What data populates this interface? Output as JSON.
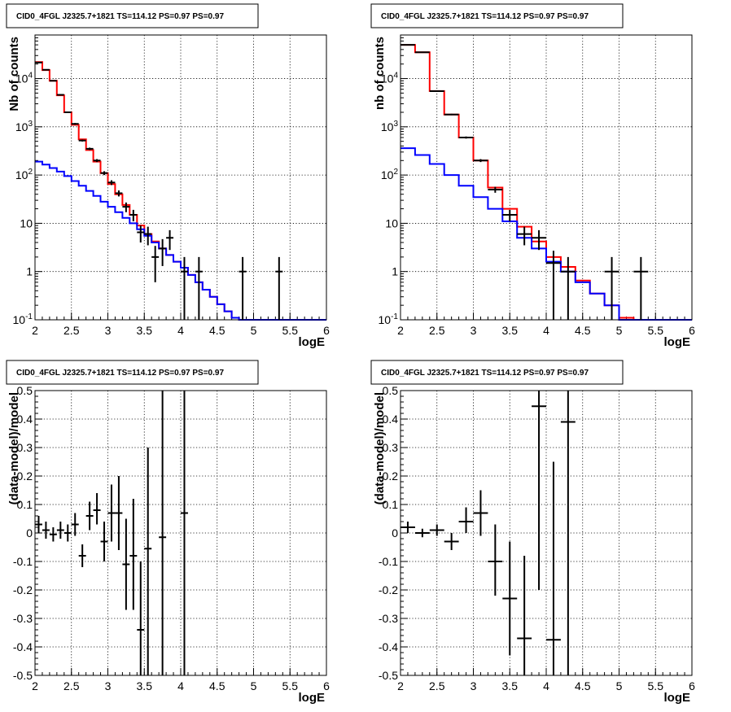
{
  "chart_data": [
    {
      "type": "line",
      "panel": "top-left",
      "title": "CID0_4FGL J2325.7+1821 TS=114.12 PS=0.97 PS=0.97",
      "xlabel": "logE",
      "ylabel": "Nb of counts",
      "xlim": [
        2,
        6
      ],
      "ylim": [
        0.1,
        80000
      ],
      "log_y": true,
      "grid": true,
      "x_ticks": [
        2,
        2.5,
        3,
        3.5,
        4,
        4.5,
        5,
        5.5,
        6
      ],
      "x_tick_labels": [
        "2",
        "2.5",
        "3",
        "3.5",
        "4",
        "4.5",
        "5",
        "5.5",
        "6"
      ],
      "y_ticks": [
        0.1,
        1,
        10,
        100,
        1000,
        10000
      ],
      "y_tick_labels": [
        "10<sup>-1</sup>",
        "1",
        "10",
        "10<sup>2</sup>",
        "10<sup>3</sup>",
        "10<sup>4</sup>"
      ],
      "bin_edges": [
        2.0,
        2.1,
        2.2,
        2.3,
        2.4,
        2.5,
        2.6,
        2.7,
        2.8,
        2.9,
        3.0,
        3.1,
        3.2,
        3.3,
        3.4,
        3.5,
        3.6,
        3.7,
        3.8,
        3.9,
        4.0,
        4.1,
        4.2,
        4.3,
        4.4,
        4.5,
        4.6,
        4.7,
        4.8,
        4.9,
        5.0,
        5.1,
        5.2,
        5.3,
        5.4,
        5.5,
        5.6,
        5.7,
        5.8,
        5.9,
        6.0
      ],
      "series": [
        {
          "color": "#ff0000",
          "values": [
            22000,
            15000,
            9000,
            4500,
            2000,
            1100,
            550,
            330,
            190,
            110,
            65,
            40,
            24,
            15,
            9,
            6,
            4.2,
            3,
            2.2,
            1.6,
            1.2,
            0.85,
            0.6,
            0.42,
            0.3,
            0.21,
            0.15,
            0.11,
            0.1,
            0.1,
            0.1,
            0.1,
            0.1,
            0.1,
            0.1,
            0.1,
            0.1,
            0.1,
            0.1,
            0.1
          ]
        },
        {
          "color": "#0000ff",
          "values": [
            190,
            165,
            140,
            118,
            95,
            75,
            60,
            47,
            37,
            28,
            22,
            17,
            13,
            10,
            7.5,
            5.5,
            4,
            3,
            2.2,
            1.6,
            1.2,
            0.85,
            0.6,
            0.42,
            0.3,
            0.21,
            0.15,
            0.11,
            0.1,
            0.1,
            0.1,
            0.1,
            0.1,
            0.1,
            0.1,
            0.1,
            0.1,
            0.1,
            0.1,
            0.1
          ]
        }
      ],
      "points": [
        {
          "x": 2.05,
          "y": 21500,
          "lo": 21300,
          "hi": 21700
        },
        {
          "x": 2.15,
          "y": 15200,
          "lo": 15000,
          "hi": 15400
        },
        {
          "x": 2.25,
          "y": 9000,
          "lo": 8850,
          "hi": 9150
        },
        {
          "x": 2.35,
          "y": 4600,
          "lo": 4500,
          "hi": 4700
        },
        {
          "x": 2.45,
          "y": 2000,
          "lo": 1940,
          "hi": 2060
        },
        {
          "x": 2.55,
          "y": 1150,
          "lo": 1100,
          "hi": 1200
        },
        {
          "x": 2.65,
          "y": 520,
          "lo": 495,
          "hi": 545
        },
        {
          "x": 2.75,
          "y": 350,
          "lo": 330,
          "hi": 370
        },
        {
          "x": 2.85,
          "y": 200,
          "lo": 186,
          "hi": 214
        },
        {
          "x": 2.95,
          "y": 110,
          "lo": 100,
          "hi": 120
        },
        {
          "x": 3.05,
          "y": 70,
          "lo": 62,
          "hi": 78
        },
        {
          "x": 3.15,
          "y": 42,
          "lo": 36,
          "hi": 48
        },
        {
          "x": 3.25,
          "y": 22,
          "lo": 17,
          "hi": 27
        },
        {
          "x": 3.35,
          "y": 15,
          "lo": 11,
          "hi": 19
        },
        {
          "x": 3.45,
          "y": 6.5,
          "lo": 4,
          "hi": 9
        },
        {
          "x": 3.55,
          "y": 6,
          "lo": 3.5,
          "hi": 8.5
        },
        {
          "x": 3.65,
          "y": 2,
          "lo": 0.6,
          "hi": 3.4
        },
        {
          "x": 3.75,
          "y": 3,
          "lo": 1.3,
          "hi": 4.7
        },
        {
          "x": 3.85,
          "y": 5,
          "lo": 2.8,
          "hi": 7.2
        },
        {
          "x": 4.05,
          "y": 1,
          "lo": 0.1,
          "hi": 2
        },
        {
          "x": 4.25,
          "y": 1,
          "lo": 0.1,
          "hi": 2
        },
        {
          "x": 4.85,
          "y": 1,
          "lo": 0.1,
          "hi": 2
        },
        {
          "x": 5.35,
          "y": 1,
          "lo": 0.1,
          "hi": 2
        }
      ]
    },
    {
      "type": "line",
      "panel": "top-right",
      "title": "CID0_4FGL J2325.7+1821 TS=114.12 PS=0.97 PS=0.97",
      "xlabel": "logE",
      "ylabel": "nb of counts",
      "xlim": [
        2,
        6
      ],
      "ylim": [
        0.1,
        80000
      ],
      "log_y": true,
      "grid": true,
      "x_ticks": [
        2,
        2.5,
        3,
        3.5,
        4,
        4.5,
        5,
        5.5,
        6
      ],
      "x_tick_labels": [
        "2",
        "2.5",
        "3",
        "3.5",
        "4",
        "4.5",
        "5",
        "5.5",
        "6"
      ],
      "y_ticks": [
        0.1,
        1,
        10,
        100,
        1000,
        10000
      ],
      "y_tick_labels": [
        "10<sup>-1</sup>",
        "1",
        "10",
        "10<sup>2</sup>",
        "10<sup>3</sup>",
        "10<sup>4</sup>"
      ],
      "bin_edges": [
        2.0,
        2.2,
        2.4,
        2.6,
        2.8,
        3.0,
        3.2,
        3.4,
        3.6,
        3.8,
        4.0,
        4.2,
        4.4,
        4.6,
        4.8,
        5.0,
        5.2,
        5.4,
        5.6,
        5.8,
        6.0
      ],
      "series": [
        {
          "color": "#ff0000",
          "values": [
            50000,
            35000,
            5500,
            1800,
            600,
            200,
            55,
            20,
            8.5,
            4.2,
            2,
            1.25,
            0.65,
            0.35,
            0.2,
            0.11,
            0.1,
            0.1,
            0.1,
            0.1
          ]
        },
        {
          "color": "#0000ff",
          "values": [
            360,
            260,
            170,
            100,
            60,
            35,
            20,
            11,
            5,
            3,
            1.6,
            1.0,
            0.6,
            0.35,
            0.2,
            0.1,
            0.1,
            0.1,
            0.1,
            0.1
          ]
        }
      ],
      "points": [
        {
          "x": 2.1,
          "y": 50000,
          "lo": 49800,
          "hi": 50200
        },
        {
          "x": 2.3,
          "y": 35000,
          "lo": 34800,
          "hi": 35200
        },
        {
          "x": 2.5,
          "y": 5500,
          "lo": 5400,
          "hi": 5600
        },
        {
          "x": 2.7,
          "y": 1800,
          "lo": 1740,
          "hi": 1860
        },
        {
          "x": 2.9,
          "y": 600,
          "lo": 570,
          "hi": 630
        },
        {
          "x": 3.1,
          "y": 200,
          "lo": 186,
          "hi": 214
        },
        {
          "x": 3.3,
          "y": 50,
          "lo": 43,
          "hi": 57
        },
        {
          "x": 3.5,
          "y": 15,
          "lo": 11,
          "hi": 19
        },
        {
          "x": 3.7,
          "y": 6,
          "lo": 3.5,
          "hi": 8.5
        },
        {
          "x": 3.9,
          "y": 5,
          "lo": 2.8,
          "hi": 7.2
        },
        {
          "x": 4.1,
          "y": 1.5,
          "lo": 0.1,
          "hi": 2.7
        },
        {
          "x": 4.3,
          "y": 1,
          "lo": 0.1,
          "hi": 2
        },
        {
          "x": 4.9,
          "y": 1,
          "lo": 0.1,
          "hi": 2
        },
        {
          "x": 5.3,
          "y": 1,
          "lo": 0.1,
          "hi": 2
        }
      ]
    },
    {
      "type": "scatter",
      "panel": "bottom-left",
      "title": "CID0_4FGL J2325.7+1821 TS=114.12 PS=0.97 PS=0.97",
      "xlabel": "logE",
      "ylabel": "(data-model)/model",
      "xlim": [
        2,
        6
      ],
      "ylim": [
        -0.5,
        0.5
      ],
      "log_y": false,
      "grid": true,
      "x_ticks": [
        2,
        2.5,
        3,
        3.5,
        4,
        4.5,
        5,
        5.5,
        6
      ],
      "x_tick_labels": [
        "2",
        "2.5",
        "3",
        "3.5",
        "4",
        "4.5",
        "5",
        "5.5",
        "6"
      ],
      "y_ticks": [
        -0.5,
        -0.4,
        -0.3,
        -0.2,
        -0.1,
        0,
        0.1,
        0.2,
        0.3,
        0.4,
        0.5
      ],
      "y_tick_labels": [
        "-0.5",
        "-0.4",
        "-0.3",
        "-0.2",
        "-0.1",
        "0",
        "0.1",
        "0.2",
        "0.3",
        "0.4",
        "0.5"
      ],
      "bin_halfwidth": 0.05,
      "points": [
        {
          "x": 2.05,
          "y": 0.03,
          "lo": 0.0,
          "hi": 0.06
        },
        {
          "x": 2.15,
          "y": 0.01,
          "lo": -0.02,
          "hi": 0.04
        },
        {
          "x": 2.25,
          "y": -0.005,
          "lo": -0.03,
          "hi": 0.02
        },
        {
          "x": 2.35,
          "y": 0.01,
          "lo": -0.02,
          "hi": 0.04
        },
        {
          "x": 2.45,
          "y": 0.0,
          "lo": -0.03,
          "hi": 0.03
        },
        {
          "x": 2.55,
          "y": 0.03,
          "lo": -0.01,
          "hi": 0.07
        },
        {
          "x": 2.65,
          "y": -0.08,
          "lo": -0.12,
          "hi": -0.04
        },
        {
          "x": 2.75,
          "y": 0.06,
          "lo": 0.01,
          "hi": 0.11
        },
        {
          "x": 2.85,
          "y": 0.08,
          "lo": 0.03,
          "hi": 0.14
        },
        {
          "x": 2.95,
          "y": -0.03,
          "lo": -0.1,
          "hi": 0.04
        },
        {
          "x": 3.05,
          "y": 0.07,
          "lo": -0.03,
          "hi": 0.17
        },
        {
          "x": 3.15,
          "y": 0.07,
          "lo": -0.06,
          "hi": 0.2
        },
        {
          "x": 3.25,
          "y": -0.11,
          "lo": -0.27,
          "hi": 0.05
        },
        {
          "x": 3.35,
          "y": -0.08,
          "lo": -0.27,
          "hi": 0.12
        },
        {
          "x": 3.45,
          "y": -0.34,
          "lo": -0.5,
          "hi": -0.1
        },
        {
          "x": 3.55,
          "y": -0.055,
          "lo": -0.5,
          "hi": 0.3
        },
        {
          "x": 3.75,
          "y": -0.015,
          "lo": -0.5,
          "hi": 0.5
        },
        {
          "x": 4.05,
          "y": 0.07,
          "lo": -0.5,
          "hi": 0.5
        }
      ]
    },
    {
      "type": "scatter",
      "panel": "bottom-right",
      "title": "CID0_4FGL J2325.7+1821 TS=114.12 PS=0.97 PS=0.97",
      "xlabel": "logE",
      "ylabel": "(data-model)/model",
      "xlim": [
        2,
        6
      ],
      "ylim": [
        -0.5,
        0.5
      ],
      "log_y": false,
      "grid": true,
      "x_ticks": [
        2,
        2.5,
        3,
        3.5,
        4,
        4.5,
        5,
        5.5,
        6
      ],
      "x_tick_labels": [
        "2",
        "2.5",
        "3",
        "3.5",
        "4",
        "4.5",
        "5",
        "5.5",
        "6"
      ],
      "y_ticks": [
        -0.5,
        -0.4,
        -0.3,
        -0.2,
        -0.1,
        0,
        0.1,
        0.2,
        0.3,
        0.4,
        0.5
      ],
      "y_tick_labels": [
        "-0.5",
        "-0.4",
        "-0.3",
        "-0.2",
        "-0.1",
        "0",
        "0.1",
        "0.2",
        "0.3",
        "0.4",
        "0.5"
      ],
      "bin_halfwidth": 0.1,
      "points": [
        {
          "x": 2.1,
          "y": 0.02,
          "lo": 0.0,
          "hi": 0.04
        },
        {
          "x": 2.3,
          "y": 0.0,
          "lo": -0.015,
          "hi": 0.015
        },
        {
          "x": 2.5,
          "y": 0.01,
          "lo": -0.01,
          "hi": 0.03
        },
        {
          "x": 2.7,
          "y": -0.03,
          "lo": -0.06,
          "hi": 0.0
        },
        {
          "x": 2.9,
          "y": 0.04,
          "lo": 0.0,
          "hi": 0.09
        },
        {
          "x": 3.1,
          "y": 0.07,
          "lo": -0.01,
          "hi": 0.15
        },
        {
          "x": 3.3,
          "y": -0.1,
          "lo": -0.22,
          "hi": 0.03
        },
        {
          "x": 3.5,
          "y": -0.23,
          "lo": -0.43,
          "hi": -0.03
        },
        {
          "x": 3.7,
          "y": -0.37,
          "lo": -0.5,
          "hi": -0.08
        },
        {
          "x": 3.9,
          "y": 0.445,
          "lo": -0.2,
          "hi": 0.5
        },
        {
          "x": 4.1,
          "y": -0.375,
          "lo": -0.5,
          "hi": 0.25
        },
        {
          "x": 4.3,
          "y": 0.39,
          "lo": -0.5,
          "hi": 0.5
        }
      ]
    }
  ]
}
